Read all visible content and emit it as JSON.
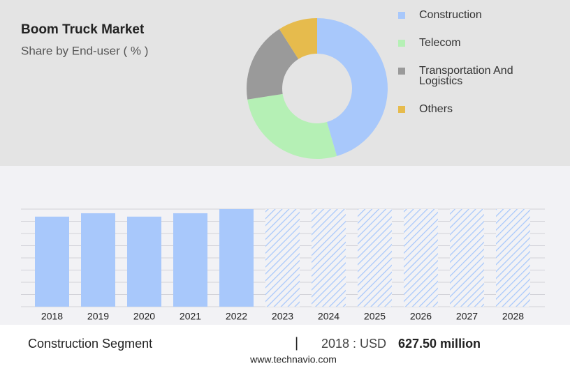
{
  "chart_data": [
    {
      "type": "pie",
      "title": "Boom Truck Market",
      "subtitle": "Share by End-user ( % )",
      "donut": true,
      "categories": [
        "Construction",
        "Telecom",
        "Transportation And Logistics",
        "Others"
      ],
      "values": [
        45.5,
        27,
        18.5,
        9
      ],
      "colors": [
        "#a8c8fb",
        "#b5f0b5",
        "#9a9a9a",
        "#e6bb4d"
      ]
    },
    {
      "type": "bar",
      "categories": [
        "2018",
        "2019",
        "2020",
        "2021",
        "2022",
        "2023",
        "2024",
        "2025",
        "2026",
        "2027",
        "2028"
      ],
      "values": [
        627.5,
        651,
        627.5,
        651,
        680,
        null,
        null,
        null,
        null,
        null,
        null
      ],
      "color": "#a8c8fb",
      "ylim": [
        0,
        680
      ],
      "yticks": [
        0,
        85,
        170,
        255,
        340,
        425,
        510,
        595,
        680
      ],
      "grid": true
    }
  ],
  "footer": {
    "segment": "Construction Segment",
    "separator": "|",
    "year_label": "2018 : USD",
    "value_label": "627.50 million",
    "source": "www.technavio.com"
  }
}
